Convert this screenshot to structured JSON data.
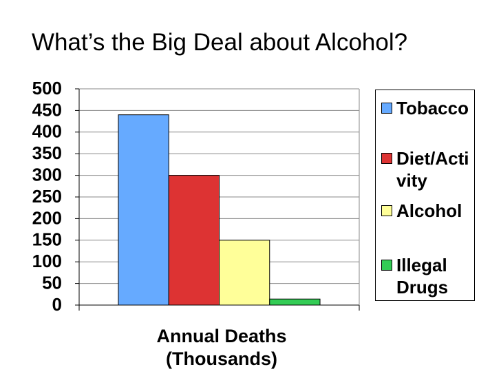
{
  "chart_data": {
    "type": "bar",
    "title": "What’s the Big Deal about Alcohol?",
    "x_label": "Annual Deaths (Thousands)",
    "categories": [
      null
    ],
    "series": [
      {
        "name": "Tobacco",
        "color": "#66aaff",
        "values": [
          440
        ]
      },
      {
        "name": "Diet/Activity",
        "color": "#dd3333",
        "values": [
          300
        ]
      },
      {
        "name": "Alcohol",
        "color": "#ffff99",
        "values": [
          150
        ]
      },
      {
        "name": "Illegal Drugs",
        "color": "#33cc55",
        "values": [
          14
        ]
      }
    ],
    "ylim": [
      0,
      500
    ],
    "yticks": [
      0,
      50,
      100,
      150,
      200,
      250,
      300,
      350,
      400,
      450,
      500
    ],
    "grid": true,
    "legend": "right"
  }
}
